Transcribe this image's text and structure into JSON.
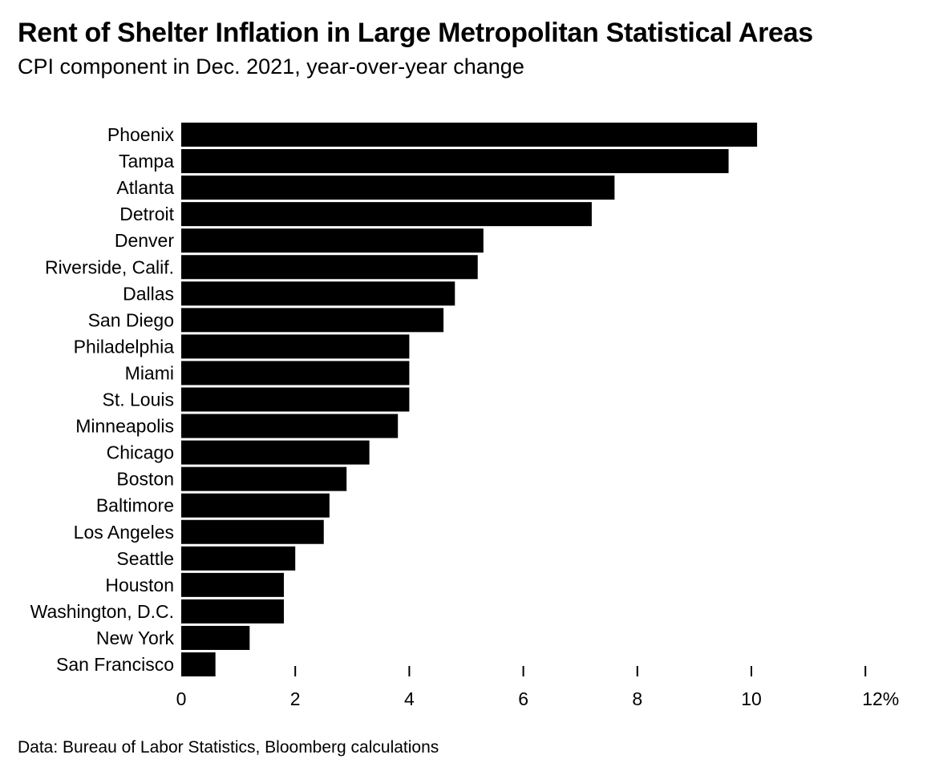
{
  "header": {
    "title": "Rent of Shelter Inflation in Large Metropolitan Statistical Areas",
    "subtitle": "CPI component in Dec. 2021, year-over-year change"
  },
  "footer": {
    "source": "Data: Bureau of Labor Statistics, Bloomberg calculations"
  },
  "chart_data": {
    "type": "bar",
    "orientation": "horizontal",
    "title": "Rent of Shelter Inflation in Large Metropolitan Statistical Areas",
    "subtitle": "CPI component in Dec. 2021, year-over-year change",
    "xlabel": "",
    "ylabel": "",
    "unit": "%",
    "xlim": [
      0,
      12
    ],
    "x_ticks": [
      0,
      2,
      4,
      6,
      8,
      10,
      12
    ],
    "x_tick_labels": [
      "0",
      "2",
      "4",
      "6",
      "8",
      "10",
      "12%"
    ],
    "grid": false,
    "legend": "none",
    "bar_color": "#000000",
    "categories": [
      "Phoenix",
      "Tampa",
      "Atlanta",
      "Detroit",
      "Denver",
      "Riverside, Calif.",
      "Dallas",
      "San Diego",
      "Philadelphia",
      "Miami",
      "St. Louis",
      "Minneapolis",
      "Chicago",
      "Boston",
      "Baltimore",
      "Los Angeles",
      "Seattle",
      "Houston",
      "Washington, D.C.",
      "New York",
      "San Francisco"
    ],
    "values": [
      10.1,
      9.6,
      7.6,
      7.2,
      5.3,
      5.2,
      4.8,
      4.6,
      4.0,
      4.0,
      4.0,
      3.8,
      3.3,
      2.9,
      2.6,
      2.5,
      2.0,
      1.8,
      1.8,
      1.2,
      0.6
    ]
  }
}
